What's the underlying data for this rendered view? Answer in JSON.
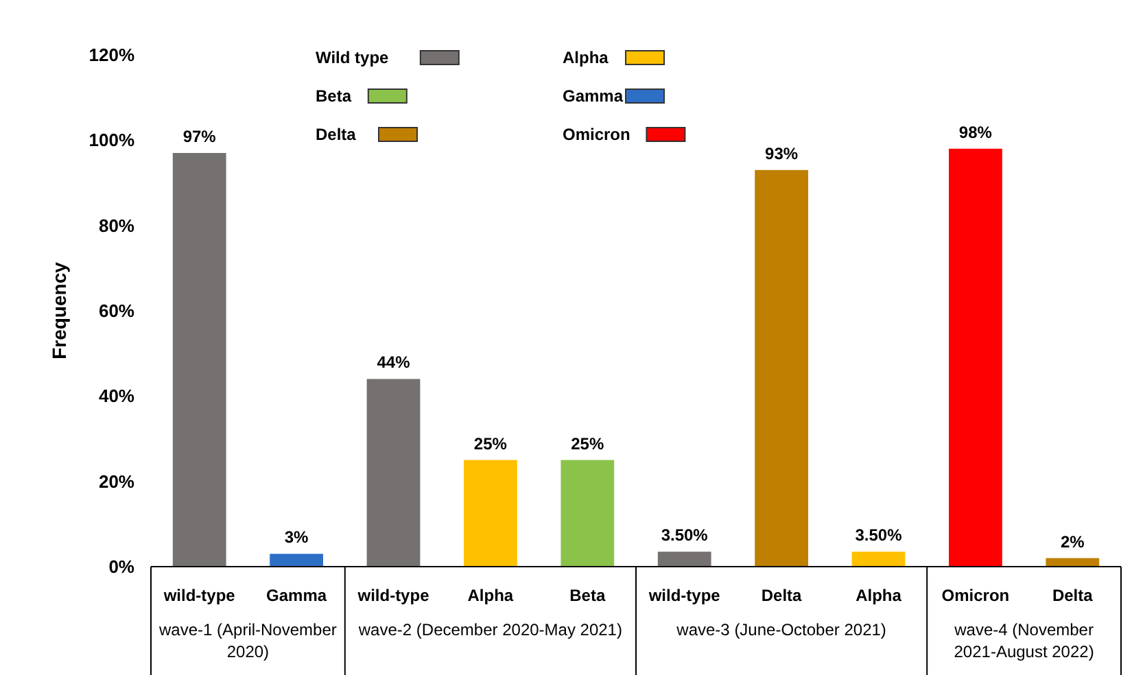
{
  "chart_data": {
    "type": "bar",
    "ylabel": "Frequency",
    "categories": [
      "wild-type",
      "Gamma",
      "wild-type",
      "Alpha",
      "Beta",
      "wild-type",
      "Delta",
      "Alpha",
      "Omicron",
      "Delta"
    ],
    "series": [
      {
        "name": "Wild type",
        "color": "#767171",
        "values": [
          97,
          null,
          44,
          null,
          null,
          3.5,
          null,
          null,
          null,
          null
        ],
        "value_labels": [
          "97%",
          null,
          "44%",
          null,
          null,
          "3.50%",
          null,
          null,
          null,
          null
        ]
      },
      {
        "name": "Alpha",
        "color": "#ffc000",
        "values": [
          null,
          null,
          null,
          25,
          null,
          null,
          null,
          3.5,
          null,
          null
        ],
        "value_labels": [
          null,
          null,
          null,
          "25%",
          null,
          null,
          null,
          "3.50%",
          null,
          null
        ]
      },
      {
        "name": "Beta",
        "color": "#8bc34a",
        "values": [
          null,
          null,
          null,
          null,
          25,
          null,
          null,
          null,
          null,
          null
        ],
        "value_labels": [
          null,
          null,
          null,
          null,
          "25%",
          null,
          null,
          null,
          null,
          null
        ]
      },
      {
        "name": "Gamma",
        "color": "#2e6fc6",
        "values": [
          null,
          3,
          null,
          null,
          null,
          null,
          null,
          null,
          null,
          null
        ],
        "value_labels": [
          null,
          "3%",
          null,
          null,
          null,
          null,
          null,
          null,
          null,
          null
        ]
      },
      {
        "name": "Delta",
        "color": "#bf7f00",
        "values": [
          null,
          null,
          null,
          null,
          null,
          null,
          93,
          null,
          null,
          2
        ],
        "value_labels": [
          null,
          null,
          null,
          null,
          null,
          null,
          "93%",
          null,
          null,
          "2%"
        ]
      },
      {
        "name": "Omicron",
        "color": "#ff0000",
        "values": [
          null,
          null,
          null,
          null,
          null,
          null,
          null,
          null,
          98,
          null
        ],
        "value_labels": [
          null,
          null,
          null,
          null,
          null,
          null,
          null,
          null,
          "98%",
          null
        ]
      }
    ],
    "ylim": [
      0,
      120
    ],
    "yticks": [
      {
        "value": 0,
        "label": "0%"
      },
      {
        "value": 20,
        "label": "20%"
      },
      {
        "value": 40,
        "label": "40%"
      },
      {
        "value": 60,
        "label": "60%"
      },
      {
        "value": 80,
        "label": "80%"
      },
      {
        "value": 100,
        "label": "100%"
      },
      {
        "value": 120,
        "label": "120%"
      }
    ],
    "grid": false,
    "legend": "top",
    "annotations": [
      "wave-1 (April-November 2020)",
      "wave-2 (December 2020-May 2021)",
      "wave-3 (June-October 2021)",
      "wave-4 (November 2021-August 2022)"
    ]
  }
}
